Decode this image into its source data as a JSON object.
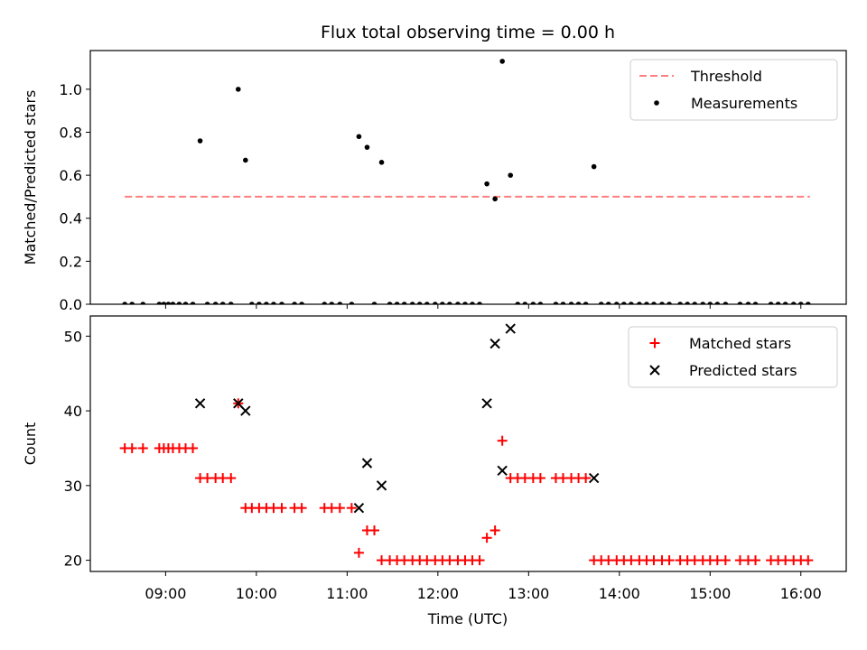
{
  "chart_data": {
    "title": "Flux total observing time = 0.00 h",
    "type": "scatter",
    "x_axis": {
      "label": "Time (UTC)",
      "unit": "hours",
      "range": [
        8.17,
        16.5
      ],
      "ticks": [
        9,
        10,
        11,
        12,
        13,
        14,
        15,
        16
      ],
      "tick_labels": [
        "09:00",
        "10:00",
        "11:00",
        "12:00",
        "13:00",
        "14:00",
        "15:00",
        "16:00"
      ]
    },
    "panels": [
      {
        "ylabel": "Matched/Predicted stars",
        "ylim": [
          0,
          1.18
        ],
        "yticks": [
          0.0,
          0.2,
          0.4,
          0.6,
          0.8,
          1.0
        ],
        "ytick_labels": [
          "0.0",
          "0.2",
          "0.4",
          "0.6",
          "0.8",
          "1.0"
        ],
        "legend_position": "top-right",
        "series": [
          {
            "name": "Threshold",
            "kind": "dashed-line",
            "color": "#ff7f7f",
            "x": [
              8.55,
              16.1
            ],
            "y": [
              0.5,
              0.5
            ]
          },
          {
            "name": "Measurements",
            "kind": "dot",
            "color": "#000000",
            "x": [
              8.55,
              8.63,
              8.75,
              8.93,
              8.98,
              9.03,
              9.08,
              9.15,
              9.22,
              9.3,
              9.38,
              9.46,
              9.55,
              9.63,
              9.72,
              9.8,
              9.88,
              9.95,
              10.03,
              10.11,
              10.19,
              10.28,
              10.42,
              10.5,
              10.75,
              10.83,
              10.92,
              11.05,
              11.13,
              11.22,
              11.3,
              11.38,
              11.47,
              11.55,
              11.63,
              11.72,
              11.8,
              11.88,
              11.97,
              12.05,
              12.13,
              12.22,
              12.3,
              12.38,
              12.46,
              12.54,
              12.63,
              12.71,
              12.8,
              12.88,
              12.96,
              13.05,
              13.13,
              13.3,
              13.38,
              13.47,
              13.55,
              13.63,
              13.72,
              13.8,
              13.88,
              13.97,
              14.05,
              14.13,
              14.22,
              14.3,
              14.38,
              14.47,
              14.55,
              14.67,
              14.75,
              14.83,
              14.92,
              15.0,
              15.08,
              15.17,
              15.33,
              15.42,
              15.5,
              15.67,
              15.75,
              15.83,
              15.92,
              16.0,
              16.08
            ],
            "y": [
              0,
              0,
              0,
              0,
              0,
              0,
              0,
              0,
              0,
              0,
              0.76,
              0,
              0,
              0,
              0,
              1.0,
              0.67,
              0,
              0,
              0,
              0,
              0,
              0,
              0,
              0,
              0,
              0,
              0,
              0.78,
              0.73,
              0,
              0.66,
              0,
              0,
              0,
              0,
              0,
              0,
              0,
              0,
              0,
              0,
              0,
              0,
              0,
              0.56,
              0.49,
              1.13,
              0.6,
              0,
              0,
              0,
              0,
              0,
              0,
              0,
              0,
              0,
              0.64,
              0,
              0,
              0,
              0,
              0,
              0,
              0,
              0,
              0,
              0,
              0,
              0,
              0,
              0,
              0,
              0,
              0,
              0,
              0,
              0,
              0,
              0,
              0,
              0,
              0,
              0
            ]
          }
        ]
      },
      {
        "ylabel": "Count",
        "ylim": [
          18.5,
          52.7
        ],
        "yticks": [
          20,
          30,
          40,
          50
        ],
        "ytick_labels": [
          "20",
          "30",
          "40",
          "50"
        ],
        "legend_position": "top-right",
        "series": [
          {
            "name": "Matched stars",
            "kind": "plus",
            "color": "#ff0000",
            "x": [
              8.55,
              8.63,
              8.75,
              8.93,
              8.98,
              9.03,
              9.08,
              9.15,
              9.22,
              9.3,
              9.38,
              9.46,
              9.55,
              9.63,
              9.72,
              9.8,
              9.88,
              9.95,
              10.03,
              10.11,
              10.19,
              10.28,
              10.42,
              10.5,
              10.75,
              10.83,
              10.92,
              11.05,
              11.13,
              11.22,
              11.3,
              11.38,
              11.47,
              11.55,
              11.63,
              11.72,
              11.8,
              11.88,
              11.97,
              12.05,
              12.13,
              12.22,
              12.3,
              12.38,
              12.46,
              12.54,
              12.63,
              12.71,
              12.8,
              12.88,
              12.96,
              13.05,
              13.13,
              13.3,
              13.38,
              13.47,
              13.55,
              13.63,
              13.72,
              13.8,
              13.88,
              13.97,
              14.05,
              14.13,
              14.22,
              14.3,
              14.38,
              14.47,
              14.55,
              14.67,
              14.75,
              14.83,
              14.92,
              15.0,
              15.08,
              15.17,
              15.33,
              15.42,
              15.5,
              15.67,
              15.75,
              15.83,
              15.92,
              16.0,
              16.08
            ],
            "y": [
              35,
              35,
              35,
              35,
              35,
              35,
              35,
              35,
              35,
              35,
              31,
              31,
              31,
              31,
              31,
              41,
              27,
              27,
              27,
              27,
              27,
              27,
              27,
              27,
              27,
              27,
              27,
              27,
              21,
              24,
              24,
              20,
              20,
              20,
              20,
              20,
              20,
              20,
              20,
              20,
              20,
              20,
              20,
              20,
              20,
              23,
              24,
              36,
              31,
              31,
              31,
              31,
              31,
              31,
              31,
              31,
              31,
              31,
              20,
              20,
              20,
              20,
              20,
              20,
              20,
              20,
              20,
              20,
              20,
              20,
              20,
              20,
              20,
              20,
              20,
              20,
              20,
              20,
              20,
              20,
              20,
              20,
              20,
              20,
              20
            ]
          },
          {
            "name": "Predicted stars",
            "kind": "x",
            "color": "#000000",
            "x": [
              9.38,
              9.8,
              9.88,
              11.13,
              11.22,
              11.38,
              12.54,
              12.63,
              12.71,
              12.8,
              13.72
            ],
            "y": [
              41,
              41,
              40,
              27,
              33,
              30,
              41,
              49,
              32,
              51,
              31
            ]
          }
        ]
      }
    ]
  }
}
